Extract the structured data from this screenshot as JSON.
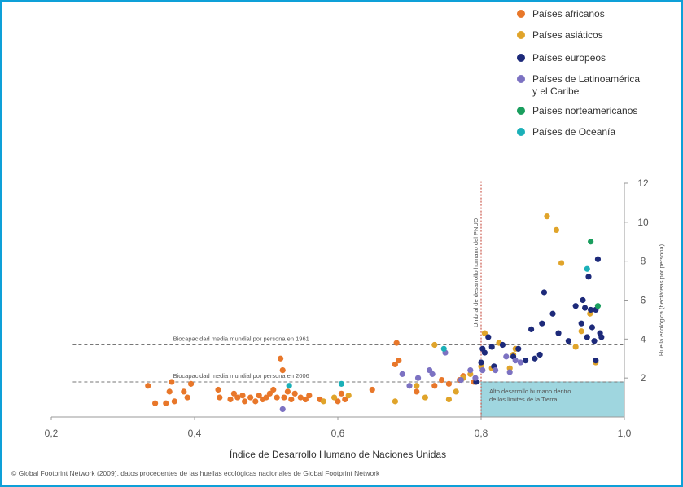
{
  "chart_data": {
    "type": "scatter",
    "title": "",
    "xlabel": "Índice de Desarrollo Humano de Naciones Unidas",
    "ylabel": "Huella ecológica (hectáreas por persona)",
    "xlim": [
      0.2,
      1.0
    ],
    "ylim": [
      0,
      12
    ],
    "x_ticks": [
      "0,2",
      "0,4",
      "0,6",
      "0,8",
      "1,0"
    ],
    "y_ticks": [
      "2",
      "4",
      "6",
      "8",
      "10",
      "12"
    ],
    "grid": false,
    "legend_position": "top-right",
    "series": [
      {
        "name": "Países africanos",
        "color": "#e8772a",
        "points": [
          [
            0.335,
            1.6
          ],
          [
            0.345,
            0.7
          ],
          [
            0.36,
            0.7
          ],
          [
            0.365,
            1.3
          ],
          [
            0.368,
            1.8
          ],
          [
            0.372,
            0.8
          ],
          [
            0.385,
            1.3
          ],
          [
            0.39,
            1.0
          ],
          [
            0.395,
            1.7
          ],
          [
            0.433,
            1.4
          ],
          [
            0.435,
            1.0
          ],
          [
            0.45,
            0.9
          ],
          [
            0.455,
            1.2
          ],
          [
            0.46,
            1.0
          ],
          [
            0.467,
            1.1
          ],
          [
            0.47,
            0.8
          ],
          [
            0.478,
            1.0
          ],
          [
            0.485,
            0.8
          ],
          [
            0.49,
            1.1
          ],
          [
            0.495,
            0.9
          ],
          [
            0.5,
            1.0
          ],
          [
            0.505,
            1.2
          ],
          [
            0.51,
            1.4
          ],
          [
            0.515,
            1.0
          ],
          [
            0.52,
            3.0
          ],
          [
            0.523,
            2.4
          ],
          [
            0.525,
            1.0
          ],
          [
            0.53,
            1.3
          ],
          [
            0.535,
            0.9
          ],
          [
            0.54,
            1.2
          ],
          [
            0.548,
            1.0
          ],
          [
            0.555,
            0.9
          ],
          [
            0.56,
            1.1
          ],
          [
            0.575,
            0.9
          ],
          [
            0.6,
            0.8
          ],
          [
            0.605,
            1.2
          ],
          [
            0.61,
            0.9
          ],
          [
            0.648,
            1.4
          ],
          [
            0.68,
            2.7
          ],
          [
            0.682,
            3.8
          ],
          [
            0.685,
            2.9
          ],
          [
            0.71,
            1.3
          ],
          [
            0.735,
            1.6
          ],
          [
            0.745,
            1.9
          ],
          [
            0.755,
            1.7
          ],
          [
            0.77,
            1.9
          ],
          [
            0.775,
            2.1
          ],
          [
            0.79,
            1.8
          ]
        ]
      },
      {
        "name": "Países asiáticos",
        "color": "#e0a42a",
        "points": [
          [
            0.58,
            0.8
          ],
          [
            0.595,
            1.0
          ],
          [
            0.615,
            1.1
          ],
          [
            0.68,
            0.8
          ],
          [
            0.71,
            1.6
          ],
          [
            0.722,
            1.0
          ],
          [
            0.735,
            3.7
          ],
          [
            0.755,
            0.9
          ],
          [
            0.765,
            1.3
          ],
          [
            0.775,
            2.0
          ],
          [
            0.785,
            2.2
          ],
          [
            0.8,
            2.6
          ],
          [
            0.805,
            4.3
          ],
          [
            0.815,
            2.5
          ],
          [
            0.825,
            3.8
          ],
          [
            0.84,
            2.5
          ],
          [
            0.845,
            3.2
          ],
          [
            0.848,
            3.5
          ],
          [
            0.892,
            10.3
          ],
          [
            0.905,
            9.6
          ],
          [
            0.912,
            7.9
          ],
          [
            0.932,
            3.6
          ],
          [
            0.94,
            4.4
          ],
          [
            0.952,
            5.3
          ],
          [
            0.96,
            2.8
          ]
        ]
      },
      {
        "name": "Países europeos",
        "color": "#1d2a7a",
        "points": [
          [
            0.793,
            1.8
          ],
          [
            0.8,
            2.8
          ],
          [
            0.802,
            3.5
          ],
          [
            0.805,
            3.3
          ],
          [
            0.81,
            4.1
          ],
          [
            0.815,
            3.6
          ],
          [
            0.818,
            2.6
          ],
          [
            0.83,
            3.7
          ],
          [
            0.845,
            3.1
          ],
          [
            0.852,
            3.5
          ],
          [
            0.862,
            2.9
          ],
          [
            0.87,
            4.5
          ],
          [
            0.875,
            3.0
          ],
          [
            0.882,
            3.2
          ],
          [
            0.885,
            4.8
          ],
          [
            0.888,
            6.4
          ],
          [
            0.9,
            5.3
          ],
          [
            0.908,
            4.3
          ],
          [
            0.922,
            3.9
          ],
          [
            0.932,
            5.7
          ],
          [
            0.94,
            4.8
          ],
          [
            0.942,
            6.0
          ],
          [
            0.945,
            5.6
          ],
          [
            0.948,
            4.1
          ],
          [
            0.95,
            7.2
          ],
          [
            0.953,
            5.5
          ],
          [
            0.955,
            4.6
          ],
          [
            0.958,
            3.9
          ],
          [
            0.96,
            5.5
          ],
          [
            0.963,
            8.1
          ],
          [
            0.966,
            4.3
          ],
          [
            0.968,
            4.1
          ],
          [
            0.96,
            2.9
          ]
        ]
      },
      {
        "name": "Países de Latinoamérica y el Caribe",
        "color": "#7c72c2",
        "points": [
          [
            0.523,
            0.4
          ],
          [
            0.69,
            2.2
          ],
          [
            0.7,
            1.6
          ],
          [
            0.712,
            2.0
          ],
          [
            0.728,
            2.4
          ],
          [
            0.732,
            2.2
          ],
          [
            0.75,
            3.3
          ],
          [
            0.772,
            1.9
          ],
          [
            0.785,
            2.4
          ],
          [
            0.792,
            2.0
          ],
          [
            0.802,
            2.4
          ],
          [
            0.82,
            2.4
          ],
          [
            0.835,
            3.1
          ],
          [
            0.84,
            2.3
          ],
          [
            0.848,
            2.9
          ],
          [
            0.855,
            2.8
          ]
        ]
      },
      {
        "name": "Países norteamericanos",
        "color": "#1a9e5e",
        "points": [
          [
            0.953,
            9.0
          ],
          [
            0.963,
            5.7
          ]
        ]
      },
      {
        "name": "Países de Oceanía",
        "color": "#1bb0b8",
        "points": [
          [
            0.532,
            1.6
          ],
          [
            0.605,
            1.7
          ],
          [
            0.748,
            3.5
          ],
          [
            0.948,
            7.6
          ]
        ]
      }
    ],
    "annotations": {
      "biocap_1961": {
        "label": "Biocapacidad media mundial por persona en 1961",
        "y": 3.7
      },
      "biocap_2006": {
        "label": "Biocapacidad media mundial por persona en 2006",
        "y": 1.8
      },
      "threshold": {
        "label": "Umbral de desarrollo humano del PNUD",
        "x": 0.8
      },
      "box": {
        "line1": "Alto desarrollo humano dentro",
        "line2": "de los límites de la Tierra"
      }
    }
  },
  "legend": [
    {
      "label": "Países africanos",
      "color": "#e8772a"
    },
    {
      "label": "Países asiáticos",
      "color": "#e0a42a"
    },
    {
      "label": "Países europeos",
      "color": "#1d2a7a"
    },
    {
      "label": "Países de Latinoamérica",
      "label2": "y el Caribe",
      "color": "#7c72c2"
    },
    {
      "label": "Países norteamericanos",
      "color": "#1a9e5e"
    },
    {
      "label": "Países de Oceanía",
      "color": "#1bb0b8"
    }
  ],
  "source": "© Global Footprint Network (2009), datos procedentes de las huellas ecológicas nacionales de Global Footprint Network"
}
